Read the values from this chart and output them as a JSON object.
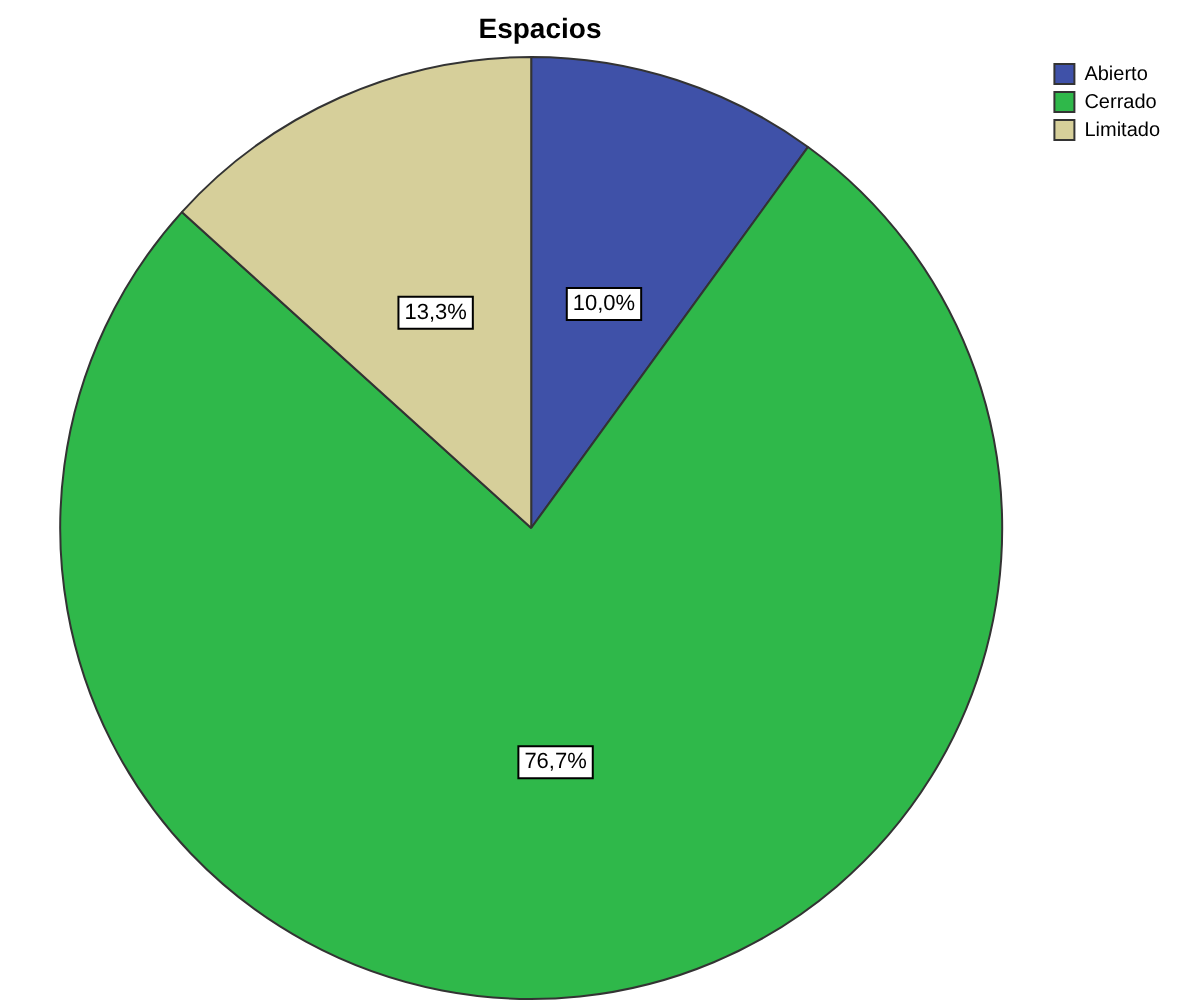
{
  "chart_data": {
    "type": "pie",
    "title": "Espacios",
    "categories": [
      "Abierto",
      "Cerrado",
      "Limitado"
    ],
    "values": [
      10.0,
      76.7,
      13.3
    ],
    "colors": [
      "#3f51a8",
      "#2fb84a",
      "#d6cf9a"
    ],
    "value_labels": [
      "10,0%",
      "76,7%",
      "13,3%"
    ],
    "legend": "top right"
  }
}
